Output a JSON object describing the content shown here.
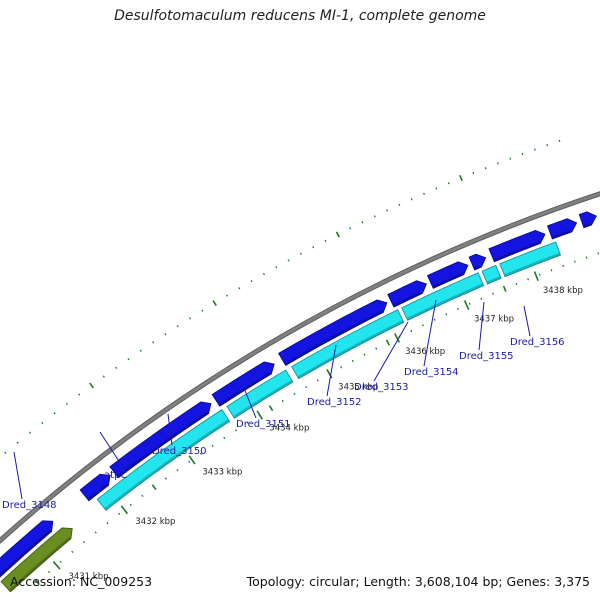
{
  "title": "Desulfotomaculum reducens MI-1, complete genome",
  "footer": {
    "accession": "Accession: NC_009253",
    "summary": "Topology: circular; Length: 3,608,104 bp; Genes: 3,375"
  },
  "colors": {
    "backbone": "#808080",
    "forward_genes": "#1414e0",
    "cds_track": "#22e5ee",
    "reverse_genes": "#6b8e23",
    "ticks": "#1e7a1e",
    "gene_labels": "#1a1aa8"
  },
  "ticks": [
    {
      "label": "3431 kbp"
    },
    {
      "label": "3432 kbp"
    },
    {
      "label": "3433 kbp"
    },
    {
      "label": "3434 kbp"
    },
    {
      "label": "3435 kbp"
    },
    {
      "label": "3436 kbp"
    },
    {
      "label": "3437 kbp"
    },
    {
      "label": "3438 kbp"
    }
  ],
  "genes": [
    {
      "label": "Dred_3148"
    },
    {
      "label": "atpC"
    },
    {
      "label": "Dred_3150"
    },
    {
      "label": "Dred_3151"
    },
    {
      "label": "Dred_3152"
    },
    {
      "label": "Dred_3153"
    },
    {
      "label": "Dred_3154"
    },
    {
      "label": "Dred_3155"
    },
    {
      "label": "Dred_3156"
    }
  ]
}
